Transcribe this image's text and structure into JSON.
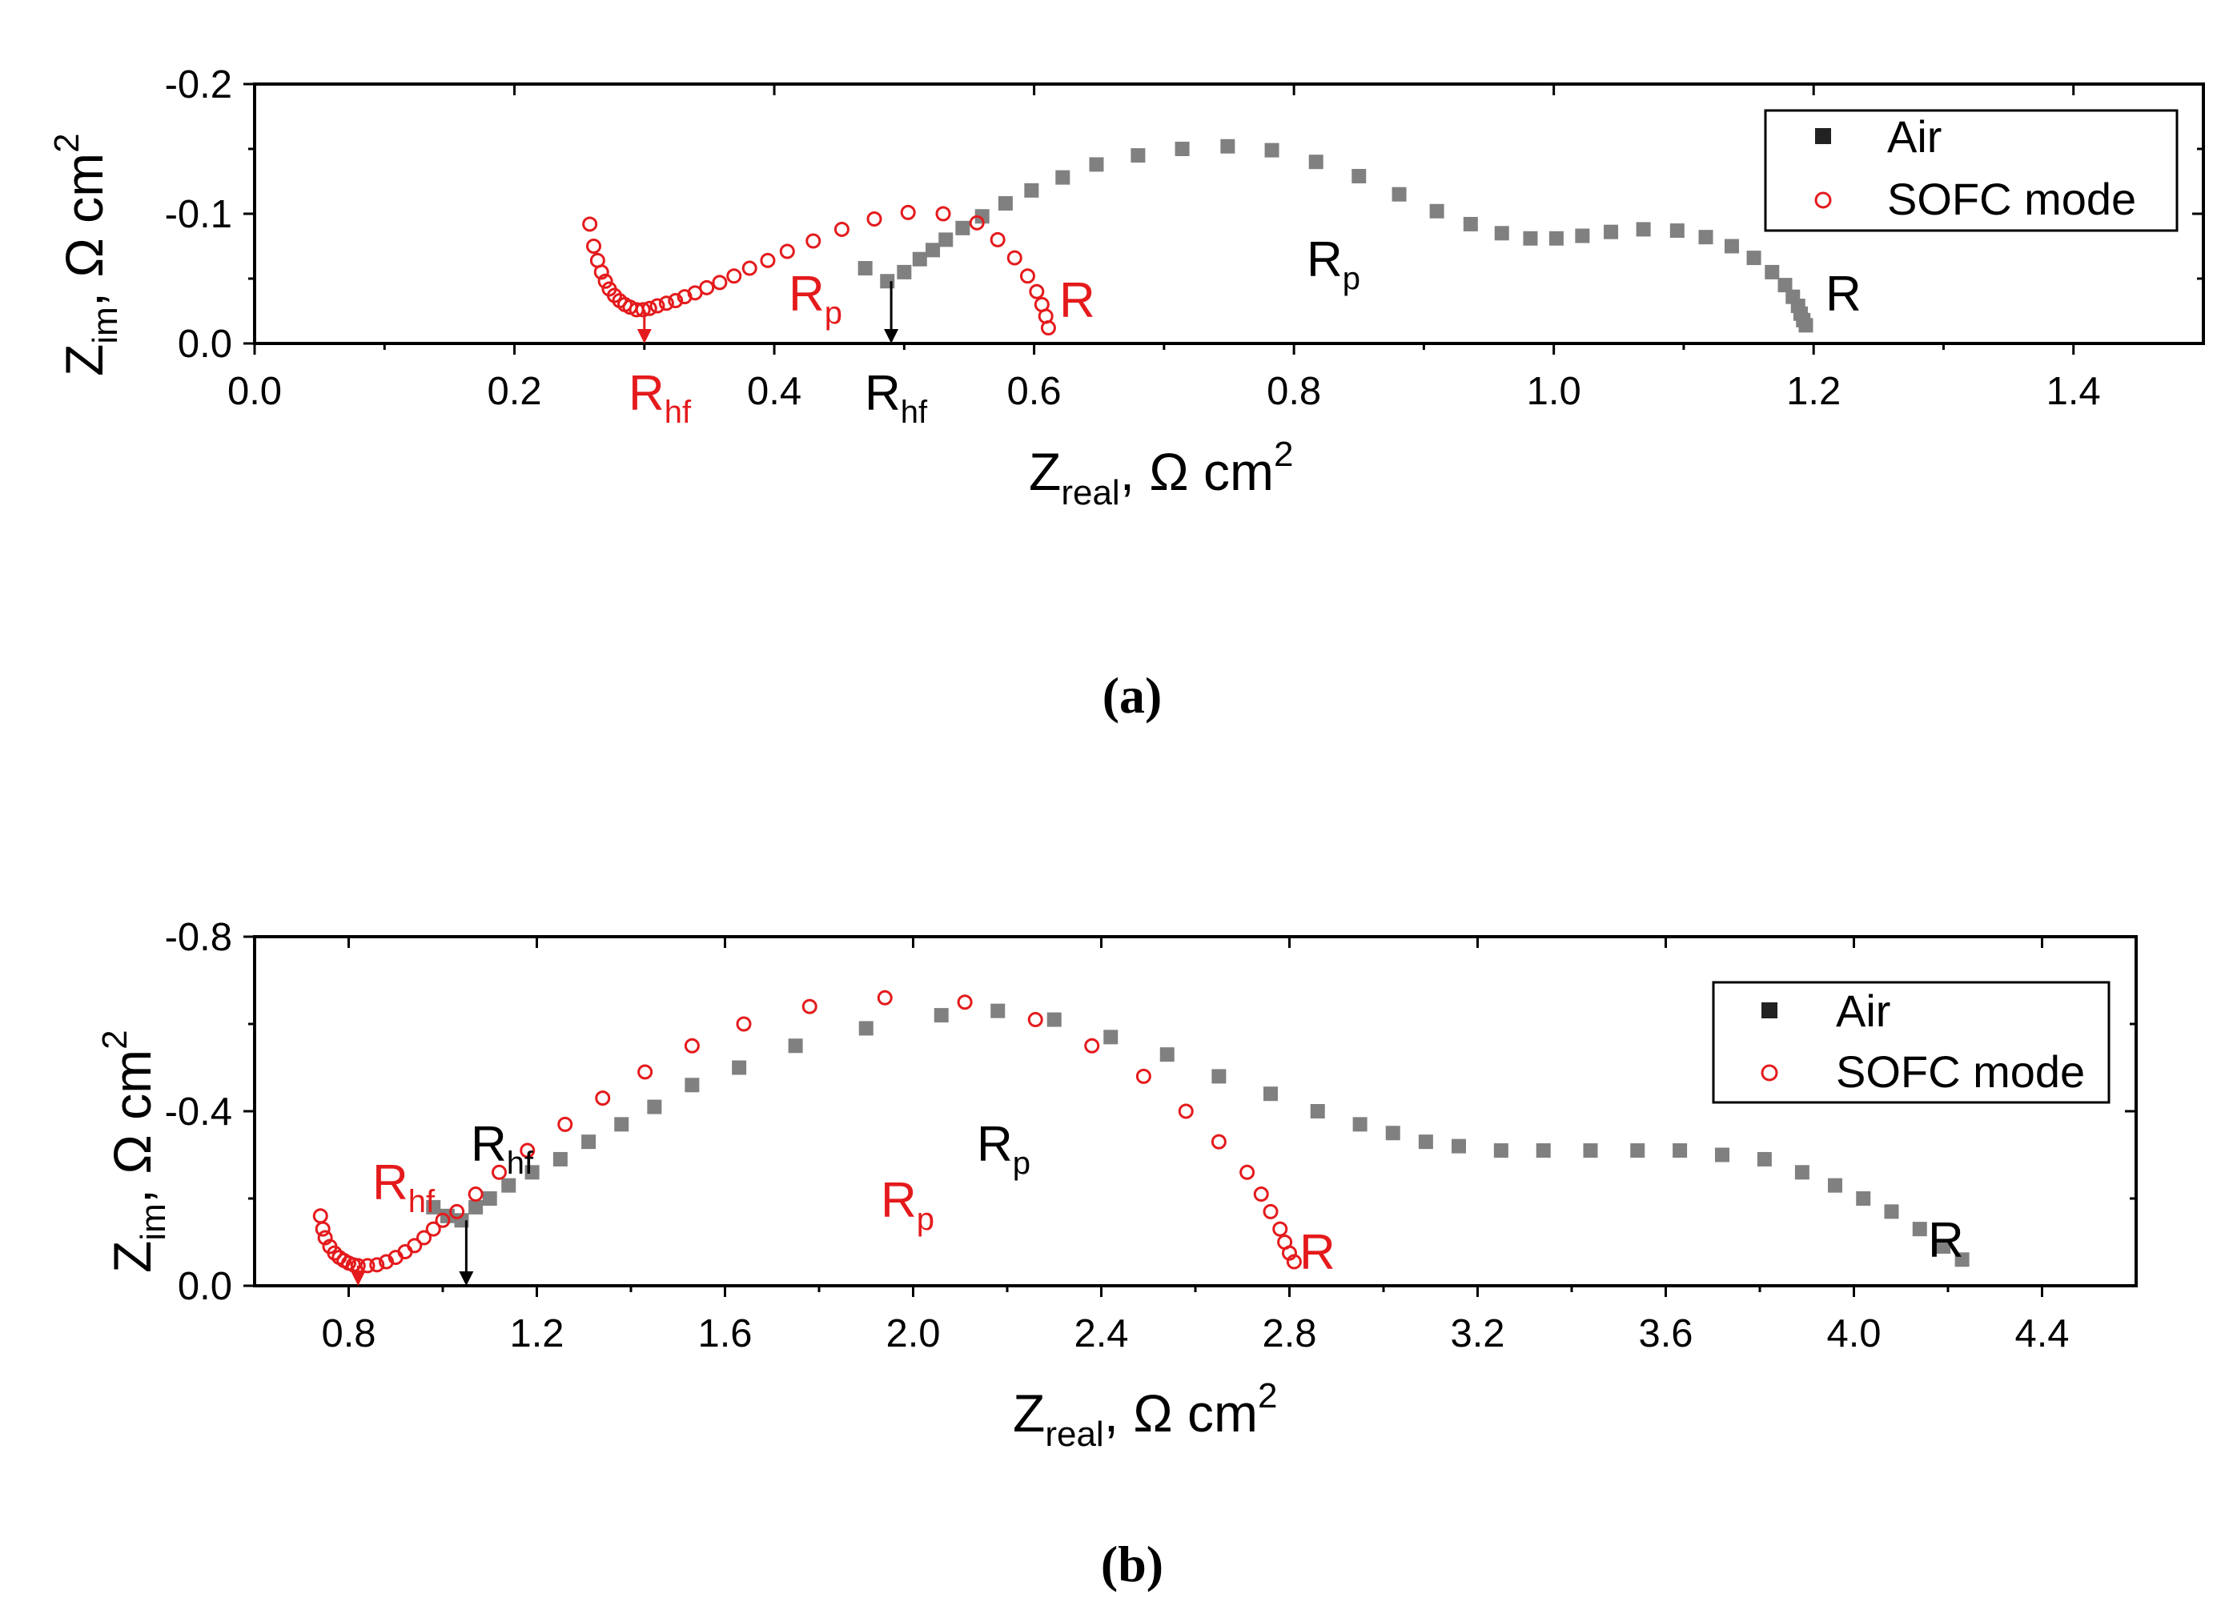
{
  "chart_data": [
    {
      "type": "scatter",
      "panel_label": "(a)",
      "xlabel": {
        "main": "Z",
        "sub": "real",
        "tail": ", Ω cm",
        "sup": "2"
      },
      "ylabel": {
        "main": "Z",
        "sub": "im",
        "tail": ", Ω cm",
        "sup": "2"
      },
      "xlim": [
        0,
        1.5
      ],
      "ylim": [
        0,
        -0.2
      ],
      "x_ticks": [
        "0.0",
        "0.2",
        "0.4",
        "0.6",
        "0.8",
        "1.0",
        "1.2",
        "1.4"
      ],
      "x_tick_values": [
        0.0,
        0.2,
        0.4,
        0.6,
        0.8,
        1.0,
        1.2,
        1.4
      ],
      "y_ticks": [
        "0.0",
        "-0.1",
        "-0.2"
      ],
      "y_tick_values": [
        0.0,
        -0.1,
        -0.2
      ],
      "legend": {
        "position": "top-right",
        "entries": [
          "Air",
          "SOFC mode"
        ]
      },
      "series": [
        {
          "name": "Air",
          "marker": "square-filled",
          "color": "#808080",
          "x": [
            0.47,
            0.487,
            0.5,
            0.512,
            0.522,
            0.532,
            0.545,
            0.56,
            0.578,
            0.598,
            0.622,
            0.648,
            0.68,
            0.714,
            0.749,
            0.783,
            0.817,
            0.85,
            0.881,
            0.91,
            0.936,
            0.96,
            0.982,
            1.002,
            1.022,
            1.044,
            1.069,
            1.095,
            1.117,
            1.137,
            1.154,
            1.168,
            1.178,
            1.184,
            1.188,
            1.19,
            1.192,
            1.194
          ],
          "y": [
            -0.058,
            -0.048,
            -0.055,
            -0.065,
            -0.072,
            -0.08,
            -0.089,
            -0.098,
            -0.108,
            -0.118,
            -0.128,
            -0.138,
            -0.145,
            -0.15,
            -0.152,
            -0.149,
            -0.14,
            -0.129,
            -0.115,
            -0.102,
            -0.092,
            -0.085,
            -0.081,
            -0.081,
            -0.083,
            -0.086,
            -0.088,
            -0.087,
            -0.082,
            -0.075,
            -0.066,
            -0.055,
            -0.045,
            -0.036,
            -0.029,
            -0.023,
            -0.018,
            -0.014
          ]
        },
        {
          "name": "SOFC mode",
          "marker": "circle-open",
          "color": "#e41a1c",
          "x": [
            0.258,
            0.261,
            0.264,
            0.267,
            0.27,
            0.273,
            0.277,
            0.281,
            0.285,
            0.289,
            0.294,
            0.299,
            0.304,
            0.31,
            0.317,
            0.324,
            0.331,
            0.339,
            0.348,
            0.358,
            0.369,
            0.381,
            0.395,
            0.41,
            0.43,
            0.452,
            0.477,
            0.503,
            0.53,
            0.556,
            0.572,
            0.585,
            0.595,
            0.602,
            0.606,
            0.609,
            0.611
          ],
          "y": [
            -0.092,
            -0.075,
            -0.064,
            -0.055,
            -0.048,
            -0.042,
            -0.037,
            -0.033,
            -0.03,
            -0.028,
            -0.026,
            -0.026,
            -0.027,
            -0.029,
            -0.031,
            -0.033,
            -0.036,
            -0.039,
            -0.043,
            -0.047,
            -0.052,
            -0.058,
            -0.064,
            -0.071,
            -0.079,
            -0.088,
            -0.096,
            -0.101,
            -0.1,
            -0.093,
            -0.08,
            -0.066,
            -0.052,
            -0.04,
            -0.03,
            -0.021,
            -0.012
          ]
        }
      ],
      "annotations": [
        {
          "text": "R",
          "sub": "hf",
          "color": "#e41a1c",
          "x": 0.3,
          "y_offset_label": true
        },
        {
          "text": "R",
          "sub": "p",
          "color": "#e41a1c"
        },
        {
          "text": "R",
          "sub": "",
          "color": "#e41a1c"
        },
        {
          "text": "R",
          "sub": "hf",
          "color": "#000000"
        },
        {
          "text": "R",
          "sub": "p",
          "color": "#000000"
        },
        {
          "text": "R",
          "sub": "",
          "color": "#000000"
        }
      ],
      "arrows": [
        {
          "color": "#e41a1c",
          "x": 0.3,
          "y_from": -0.026,
          "y_to": 0.0
        },
        {
          "color": "#000000",
          "x": 0.49,
          "y_from": -0.048,
          "y_to": 0.0
        }
      ]
    },
    {
      "type": "scatter",
      "panel_label": "(b)",
      "xlabel": {
        "main": "Z",
        "sub": "real",
        "tail": ", Ω cm",
        "sup": "2"
      },
      "ylabel": {
        "main": "Z",
        "sub": "im",
        "tail": ", Ω cm",
        "sup": "2"
      },
      "xlim": [
        0.6,
        4.6
      ],
      "ylim": [
        0,
        -0.8
      ],
      "x_ticks": [
        "0.8",
        "1.2",
        "1.6",
        "2.0",
        "2.4",
        "2.8",
        "3.2",
        "3.6",
        "4.0",
        "4.4"
      ],
      "x_tick_values": [
        0.8,
        1.2,
        1.6,
        2.0,
        2.4,
        2.8,
        3.2,
        3.6,
        4.0,
        4.4
      ],
      "y_ticks": [
        "0.0",
        "-0.4",
        "-0.8"
      ],
      "y_tick_values": [
        0.0,
        -0.4,
        -0.8
      ],
      "legend": {
        "position": "top-right",
        "entries": [
          "Air",
          "SOFC mode"
        ]
      },
      "series": [
        {
          "name": "Air",
          "marker": "square-filled",
          "color": "#808080",
          "x": [
            0.98,
            1.01,
            1.04,
            1.07,
            1.1,
            1.14,
            1.19,
            1.25,
            1.31,
            1.38,
            1.45,
            1.53,
            1.63,
            1.75,
            1.9,
            2.06,
            2.18,
            2.3,
            2.42,
            2.54,
            2.65,
            2.76,
            2.86,
            2.95,
            3.02,
            3.09,
            3.16,
            3.25,
            3.34,
            3.44,
            3.54,
            3.63,
            3.72,
            3.81,
            3.89,
            3.96,
            4.02,
            4.08,
            4.14,
            4.19,
            4.23
          ],
          "y": [
            -0.18,
            -0.16,
            -0.15,
            -0.18,
            -0.2,
            -0.23,
            -0.26,
            -0.29,
            -0.33,
            -0.37,
            -0.41,
            -0.46,
            -0.5,
            -0.55,
            -0.59,
            -0.62,
            -0.63,
            -0.61,
            -0.57,
            -0.53,
            -0.48,
            -0.44,
            -0.4,
            -0.37,
            -0.35,
            -0.33,
            -0.32,
            -0.31,
            -0.31,
            -0.31,
            -0.31,
            -0.31,
            -0.3,
            -0.29,
            -0.26,
            -0.23,
            -0.2,
            -0.17,
            -0.13,
            -0.09,
            -0.06
          ]
        },
        {
          "name": "SOFC mode",
          "marker": "circle-open",
          "color": "#e41a1c",
          "x": [
            0.74,
            0.745,
            0.75,
            0.76,
            0.77,
            0.78,
            0.79,
            0.8,
            0.81,
            0.82,
            0.84,
            0.86,
            0.88,
            0.9,
            0.92,
            0.94,
            0.96,
            0.98,
            1.0,
            1.03,
            1.07,
            1.12,
            1.18,
            1.26,
            1.34,
            1.43,
            1.53,
            1.64,
            1.78,
            1.94,
            2.11,
            2.26,
            2.38,
            2.49,
            2.58,
            2.65,
            2.71,
            2.74,
            2.76,
            2.78,
            2.79,
            2.8,
            2.81
          ],
          "y": [
            -0.16,
            -0.13,
            -0.11,
            -0.09,
            -0.075,
            -0.065,
            -0.058,
            -0.052,
            -0.048,
            -0.046,
            -0.046,
            -0.048,
            -0.055,
            -0.065,
            -0.078,
            -0.092,
            -0.11,
            -0.13,
            -0.15,
            -0.17,
            -0.21,
            -0.26,
            -0.31,
            -0.37,
            -0.43,
            -0.49,
            -0.55,
            -0.6,
            -0.64,
            -0.66,
            -0.65,
            -0.61,
            -0.55,
            -0.48,
            -0.4,
            -0.33,
            -0.26,
            -0.21,
            -0.17,
            -0.13,
            -0.1,
            -0.075,
            -0.055
          ]
        }
      ],
      "annotations": [
        {
          "text": "R",
          "sub": "hf",
          "color": "#e41a1c"
        },
        {
          "text": "R",
          "sub": "p",
          "color": "#e41a1c"
        },
        {
          "text": "R",
          "sub": "",
          "color": "#e41a1c"
        },
        {
          "text": "R",
          "sub": "hf",
          "color": "#000000"
        },
        {
          "text": "R",
          "sub": "p",
          "color": "#000000"
        },
        {
          "text": "R",
          "sub": "",
          "color": "#000000"
        }
      ],
      "arrows": [
        {
          "color": "#e41a1c",
          "x": 0.82,
          "y_from": -0.046,
          "y_to": 0.0
        },
        {
          "color": "#000000",
          "x": 1.05,
          "y_from": -0.15,
          "y_to": 0.0
        }
      ]
    }
  ]
}
